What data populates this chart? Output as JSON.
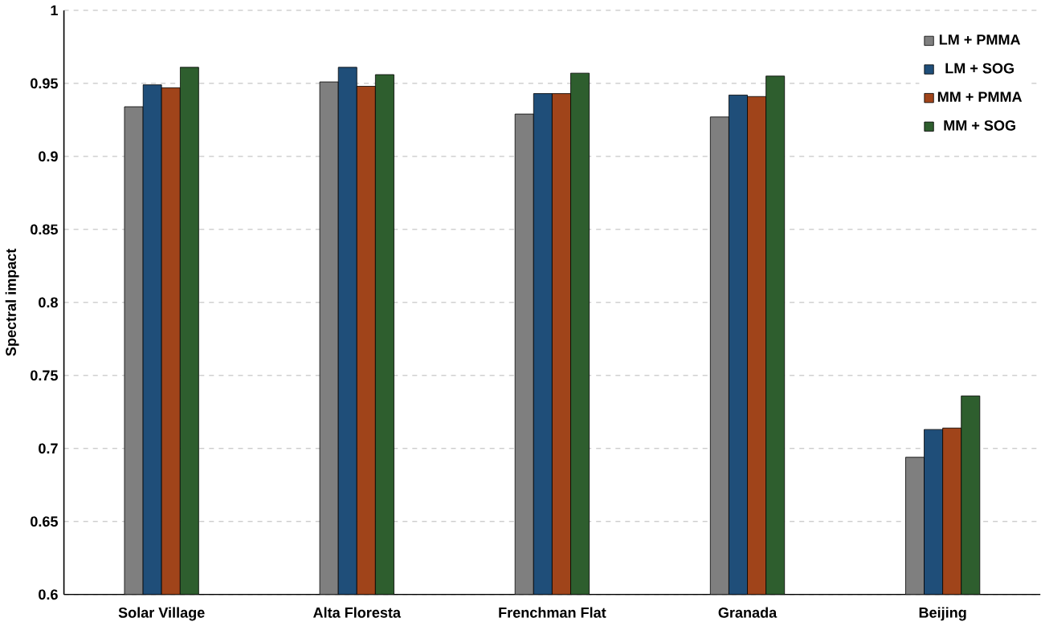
{
  "chart_data": {
    "type": "bar",
    "ylabel": "Spectral impact",
    "categories": [
      "Solar Village",
      "Alta Floresta",
      "Frenchman Flat",
      "Granada",
      "Beijing"
    ],
    "series": [
      {
        "name": "LM + PMMA",
        "color": "#7f7f7f",
        "values": [
          0.934,
          0.951,
          0.929,
          0.927,
          0.694
        ]
      },
      {
        "name": "LM + SOG",
        "color": "#1f4e79",
        "values": [
          0.949,
          0.961,
          0.943,
          0.942,
          0.713
        ]
      },
      {
        "name": "MM + PMMA",
        "color": "#a0441a",
        "values": [
          0.947,
          0.948,
          0.943,
          0.941,
          0.714
        ]
      },
      {
        "name": "MM + SOG",
        "color": "#2e5e2e",
        "values": [
          0.961,
          0.956,
          0.957,
          0.955,
          0.736
        ]
      }
    ],
    "ylim": [
      0.6,
      1
    ],
    "yticks": [
      0.6,
      0.65,
      0.7,
      0.75,
      0.8,
      0.85,
      0.9,
      0.95,
      1
    ],
    "grid": "y",
    "legend": "top right"
  }
}
